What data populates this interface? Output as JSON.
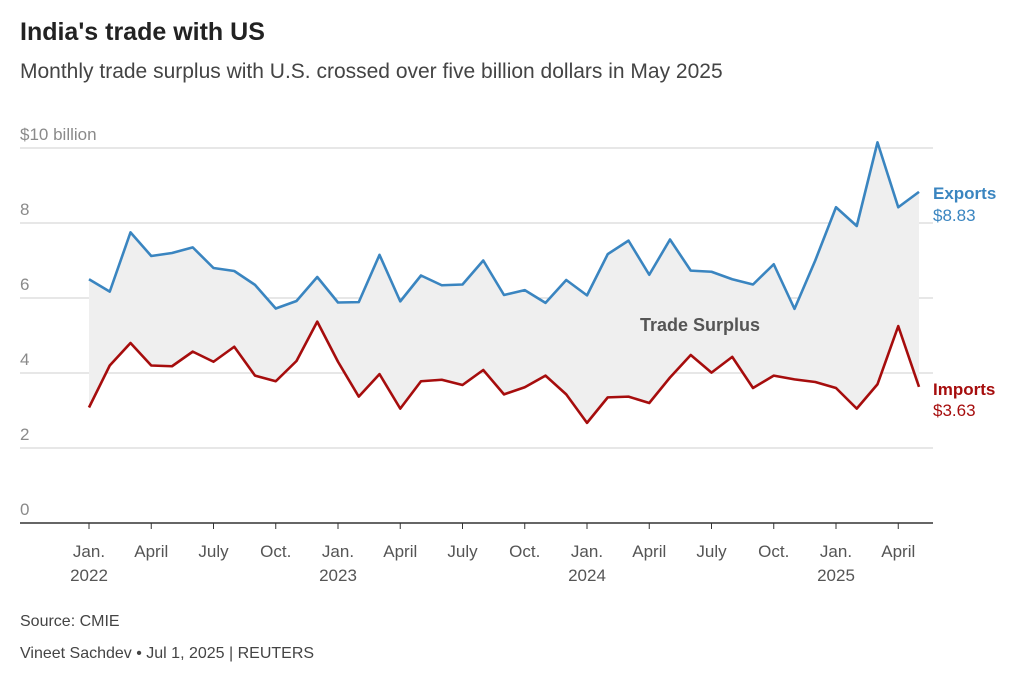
{
  "title": "India's trade with US",
  "subtitle": "Monthly trade surplus with U.S. crossed over five billion dollars in May 2025",
  "source": "Source: CMIE",
  "byline": "Vineet Sachdev • Jul 1, 2025 | REUTERS",
  "colors": {
    "exports": "#3a85c0",
    "imports": "#a60d0d",
    "fill": "#efefef",
    "grid": "#cfcfcf",
    "axis": "#555555",
    "text": "#8a8a8a"
  },
  "chart_data": {
    "type": "line",
    "title": "India's trade with US",
    "subtitle": "Monthly trade surplus with U.S. crossed over five billion dollars in May 2025",
    "ylim": [
      0,
      10
    ],
    "y_ticks": [
      0,
      2,
      4,
      6,
      8,
      10
    ],
    "y_tick_labels": [
      "0",
      "2",
      "4",
      "6",
      "8",
      "$10 billion"
    ],
    "x_ticks": [
      {
        "index": 0,
        "label": "Jan.",
        "year": "2022"
      },
      {
        "index": 3,
        "label": "April",
        "year": ""
      },
      {
        "index": 6,
        "label": "July",
        "year": ""
      },
      {
        "index": 9,
        "label": "Oct.",
        "year": ""
      },
      {
        "index": 12,
        "label": "Jan.",
        "year": "2023"
      },
      {
        "index": 15,
        "label": "April",
        "year": ""
      },
      {
        "index": 18,
        "label": "July",
        "year": ""
      },
      {
        "index": 21,
        "label": "Oct.",
        "year": ""
      },
      {
        "index": 24,
        "label": "Jan.",
        "year": "2024"
      },
      {
        "index": 27,
        "label": "April",
        "year": ""
      },
      {
        "index": 30,
        "label": "July",
        "year": ""
      },
      {
        "index": 33,
        "label": "Oct.",
        "year": ""
      },
      {
        "index": 36,
        "label": "Jan.",
        "year": "2025"
      },
      {
        "index": 39,
        "label": "April",
        "year": ""
      }
    ],
    "area_label": "Trade Surplus",
    "series": [
      {
        "name": "Exports",
        "end_label": "$8.83",
        "values": [
          6.5,
          6.17,
          7.75,
          7.12,
          7.2,
          7.35,
          6.8,
          6.72,
          6.35,
          5.72,
          5.92,
          6.56,
          5.88,
          5.89,
          7.15,
          5.91,
          6.6,
          6.34,
          6.36,
          7.0,
          6.08,
          6.21,
          5.87,
          6.48,
          6.07,
          7.17,
          7.53,
          6.62,
          7.56,
          6.73,
          6.7,
          6.5,
          6.36,
          6.9,
          5.71,
          7.0,
          8.42,
          7.92,
          10.15,
          8.42,
          8.83
        ]
      },
      {
        "name": "Imports",
        "end_label": "$3.63",
        "values": [
          3.08,
          4.2,
          4.8,
          4.2,
          4.18,
          4.57,
          4.3,
          4.7,
          3.93,
          3.78,
          4.32,
          5.37,
          4.3,
          3.37,
          3.97,
          3.05,
          3.78,
          3.82,
          3.68,
          4.08,
          3.43,
          3.62,
          3.93,
          3.43,
          2.67,
          3.35,
          3.37,
          3.2,
          3.88,
          4.48,
          4.01,
          4.43,
          3.6,
          3.93,
          3.83,
          3.76,
          3.6,
          3.05,
          3.7,
          5.25,
          3.63
        ]
      }
    ]
  }
}
